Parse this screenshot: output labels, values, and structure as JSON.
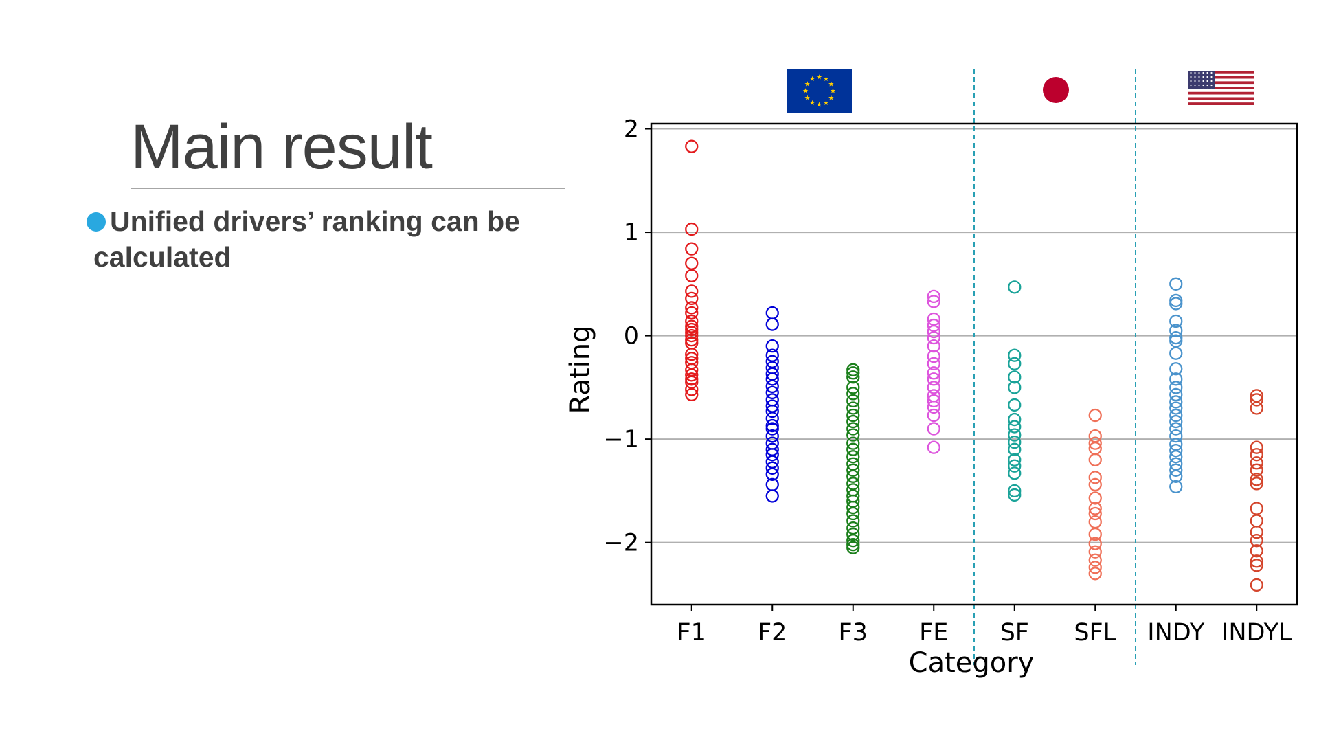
{
  "slide": {
    "title": "Main result",
    "bullet": "Unified drivers’ ranking can be calculated"
  },
  "colors": {
    "title_text": "#404040",
    "bullet_dot": "#29a8e0",
    "region_divider": "#29a0b4",
    "gridline": "#b0b0b0"
  },
  "region_flags": [
    {
      "name": "eu-flag-icon",
      "region": "EU"
    },
    {
      "name": "japan-flag-icon",
      "region": "Japan"
    },
    {
      "name": "us-flag-icon",
      "region": "USA"
    }
  ],
  "chart_data": {
    "type": "scatter",
    "title": "",
    "xlabel": "Category",
    "ylabel": "Rating",
    "ylim": [
      -2.6,
      2.05
    ],
    "grid": "horizontal",
    "marker": "open-circle",
    "yticks": [
      2,
      1,
      0,
      -1,
      -2
    ],
    "ytick_labels": [
      "2",
      "1",
      "0",
      "−1",
      "−2"
    ],
    "categories": [
      "F1",
      "F2",
      "F3",
      "FE",
      "SF",
      "SFL",
      "INDY",
      "INDYL"
    ],
    "region_dividers_after": [
      "FE",
      "SFL"
    ],
    "series": [
      {
        "category": "F1",
        "color": "#e31a1c",
        "values": [
          1.83,
          1.03,
          0.84,
          0.7,
          0.58,
          0.43,
          0.36,
          0.27,
          0.22,
          0.14,
          0.09,
          0.06,
          0.03,
          0.0,
          -0.04,
          -0.07,
          -0.18,
          -0.22,
          -0.26,
          -0.33,
          -0.38,
          -0.42,
          -0.45,
          -0.52,
          -0.57
        ]
      },
      {
        "category": "F2",
        "color": "#0000d8",
        "values": [
          0.22,
          0.11,
          -0.1,
          -0.19,
          -0.25,
          -0.31,
          -0.37,
          -0.42,
          -0.49,
          -0.55,
          -0.62,
          -0.68,
          -0.73,
          -0.8,
          -0.87,
          -0.9,
          -0.97,
          -1.04,
          -1.1,
          -1.15,
          -1.22,
          -1.28,
          -1.34,
          -1.44,
          -1.55
        ]
      },
      {
        "category": "F3",
        "color": "#1b7f1b",
        "values": [
          -0.33,
          -0.36,
          -0.4,
          -0.5,
          -0.56,
          -0.63,
          -0.7,
          -0.77,
          -0.83,
          -0.9,
          -0.96,
          -1.04,
          -1.1,
          -1.17,
          -1.24,
          -1.3,
          -1.36,
          -1.43,
          -1.49,
          -1.55,
          -1.6,
          -1.66,
          -1.72,
          -1.79,
          -1.86,
          -1.92,
          -1.98,
          -2.02,
          -2.05
        ]
      },
      {
        "category": "FE",
        "color": "#dd55dd",
        "values": [
          0.38,
          0.33,
          0.16,
          0.1,
          0.04,
          -0.02,
          -0.1,
          -0.2,
          -0.27,
          -0.36,
          -0.42,
          -0.5,
          -0.58,
          -0.63,
          -0.69,
          -0.77,
          -0.9,
          -1.08
        ]
      },
      {
        "category": "SF",
        "color": "#1aa399",
        "values": [
          0.47,
          -0.19,
          -0.27,
          -0.4,
          -0.5,
          -0.67,
          -0.81,
          -0.88,
          -0.96,
          -1.03,
          -1.1,
          -1.2,
          -1.26,
          -1.33,
          -1.5,
          -1.54
        ]
      },
      {
        "category": "SFL",
        "color": "#ef7058",
        "values": [
          -0.77,
          -0.97,
          -1.04,
          -1.09,
          -1.2,
          -1.37,
          -1.44,
          -1.57,
          -1.67,
          -1.72,
          -1.8,
          -1.92,
          -2.01,
          -2.09,
          -2.17,
          -2.24,
          -2.3
        ]
      },
      {
        "category": "INDY",
        "color": "#4a93cc",
        "values": [
          0.5,
          0.34,
          0.31,
          0.14,
          0.05,
          -0.02,
          -0.05,
          -0.17,
          -0.32,
          -0.42,
          -0.5,
          -0.57,
          -0.64,
          -0.7,
          -0.77,
          -0.83,
          -0.9,
          -0.97,
          -1.05,
          -1.11,
          -1.17,
          -1.24,
          -1.3,
          -1.36,
          -1.46
        ]
      },
      {
        "category": "INDYL",
        "color": "#d4452c",
        "values": [
          -0.58,
          -0.62,
          -0.7,
          -1.08,
          -1.15,
          -1.23,
          -1.3,
          -1.39,
          -1.43,
          -1.67,
          -1.79,
          -1.9,
          -1.98,
          -2.08,
          -2.18,
          -2.22,
          -2.41
        ]
      }
    ]
  }
}
